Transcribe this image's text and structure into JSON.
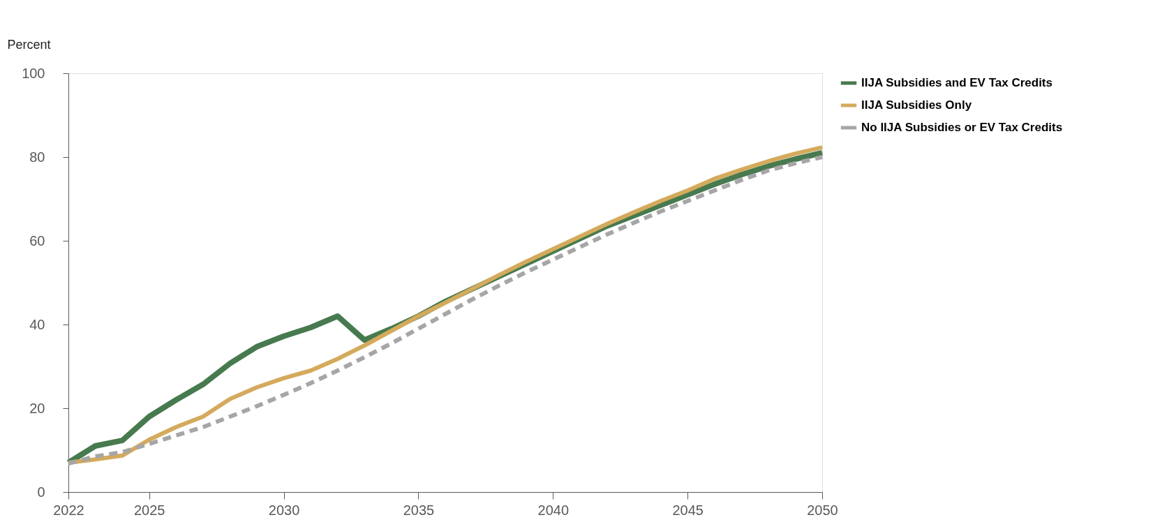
{
  "chart_data": {
    "type": "line",
    "ylabel": "Percent",
    "x": [
      2022,
      2023,
      2024,
      2025,
      2026,
      2027,
      2028,
      2029,
      2030,
      2031,
      2032,
      2033,
      2034,
      2035,
      2036,
      2037,
      2038,
      2039,
      2040,
      2041,
      2042,
      2043,
      2044,
      2045,
      2046,
      2047,
      2048,
      2049,
      2050
    ],
    "series": [
      {
        "name": "IIJA Subsidies and EV Tax Credits",
        "color": "#477a4e",
        "line_style": "solid",
        "values": [
          7,
          11,
          12.3,
          18,
          22,
          25.7,
          30.7,
          34.7,
          37.2,
          39.3,
          42,
          36.3,
          39,
          42,
          45.5,
          48.5,
          51.5,
          54.5,
          57.5,
          60.5,
          63.5,
          66,
          68.5,
          71,
          73.5,
          75.8,
          77.8,
          79.5,
          81
        ]
      },
      {
        "name": "IIJA Subsidies Only",
        "color": "#d4aa5c",
        "line_style": "solid",
        "values": [
          7,
          7.8,
          8.7,
          12.5,
          15.5,
          18,
          22.2,
          25,
          27.2,
          29,
          31.8,
          35,
          38.5,
          42,
          45.2,
          48.5,
          51.8,
          55,
          58,
          61,
          64,
          66.8,
          69.5,
          72,
          74.8,
          77,
          79,
          80.8,
          82.3
        ]
      },
      {
        "name": "No IIJA Subsidies or EV Tax Credits",
        "color": "#a6a6a6",
        "line_style": "dashed",
        "values": [
          6.8,
          8.5,
          9.5,
          11.5,
          13.5,
          15.5,
          18,
          20.5,
          23.2,
          26,
          29,
          32.2,
          35.5,
          39,
          42.5,
          46,
          49.3,
          52.5,
          55.5,
          58.5,
          61.5,
          64.3,
          67,
          69.5,
          72,
          74.5,
          76.8,
          78.5,
          80
        ]
      }
    ],
    "xlim": [
      2022,
      2050
    ],
    "xticks": [
      2022,
      2025,
      2030,
      2035,
      2040,
      2045,
      2050
    ],
    "ylim": [
      0,
      100
    ],
    "yticks": [
      0,
      20,
      40,
      60,
      80,
      100
    ],
    "grid": false,
    "legend": "top right"
  }
}
